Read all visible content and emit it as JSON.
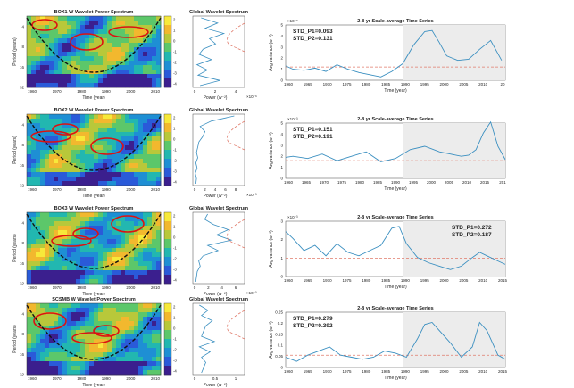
{
  "chart_data": [
    {
      "row": 1,
      "type": "heatmap",
      "title": "BOX1 W Wavelet Power Spectrum",
      "xlabel": "Time (year)",
      "ylabel": "Period (years)",
      "xticks": [
        "1960",
        "1970",
        "1980",
        "1990",
        "2000",
        "2010"
      ],
      "yticks": [
        "4",
        "8",
        "16",
        "32"
      ],
      "colorbar_ticks": [
        "2",
        "1",
        "0",
        "-1",
        "-2",
        "-3",
        "-4"
      ],
      "global": {
        "title": "Global Wavelet Spectrum",
        "xlabel": "Power (w⁻²)",
        "xticks": [
          "0",
          "2",
          "4"
        ],
        "multiplier": "×10⁻⁶",
        "values": [
          0.8,
          2.4,
          1.2,
          3.0,
          1.6,
          2.2,
          1.0,
          0.6,
          1.8,
          0.4,
          1.4,
          0.5,
          2.6,
          0.7
        ],
        "xmax": 5
      },
      "timeseries": {
        "title": "2-8 yr Scale-average Time Series",
        "type": "line",
        "xlabel": "Time (year)",
        "ylabel": "Avg variance (w⁻²)",
        "multiplier": "×10⁻⁶",
        "stats": [
          "STD_P1=0.093",
          "STD_P2=0.131"
        ],
        "stats_position": "top-left",
        "xticks": [
          "1960",
          "1965",
          "1970",
          "1975",
          "1980",
          "1985",
          "1990",
          "1995",
          "2000",
          "2005",
          "2010",
          "20"
        ],
        "yticks": [
          "0",
          "1",
          "2",
          "3",
          "4",
          "5"
        ],
        "ylim": [
          0,
          5
        ],
        "x": [
          1958,
          1960,
          1963,
          1966,
          1969,
          1972,
          1975,
          1978,
          1981,
          1984,
          1987,
          1990,
          1993,
          1996,
          1998,
          2000,
          2002,
          2005,
          2008,
          2011,
          2014,
          2016,
          2017
        ],
        "y": [
          1.3,
          1.0,
          0.9,
          1.1,
          0.8,
          1.4,
          1.0,
          0.7,
          0.5,
          0.3,
          0.8,
          1.5,
          3.2,
          4.4,
          4.5,
          3.4,
          2.2,
          1.8,
          1.9,
          2.8,
          3.6,
          2.4,
          1.8
        ],
        "threshold": 1.2
      }
    },
    {
      "row": 2,
      "type": "heatmap",
      "title": "BOX2 W Wavelet Power Spectrum",
      "xlabel": "Time (year)",
      "ylabel": "Period (years)",
      "xticks": [
        "1960",
        "1970",
        "1980",
        "1990",
        "2000",
        "2010"
      ],
      "yticks": [
        "4",
        "8",
        "16",
        "32"
      ],
      "colorbar_ticks": [
        "2",
        "1",
        "0",
        "-1",
        "-2",
        "-3",
        "-4"
      ],
      "global": {
        "title": "Global Wavelet Spectrum",
        "xlabel": "Power (w⁻²)",
        "xticks": [
          "0",
          "2",
          "4",
          "6",
          "8"
        ],
        "multiplier": "×10⁻³",
        "values": [
          6.8,
          3.0,
          1.2,
          2.0,
          1.6,
          1.0,
          0.8,
          0.6,
          0.8,
          0.5,
          0.7,
          0.4,
          0.6,
          0.5
        ],
        "xmax": 8.5
      },
      "timeseries": {
        "title": "2-8 yr Scale-average Time Series",
        "type": "line",
        "xlabel": "Time (year)",
        "ylabel": "Avg variance (w⁻²)",
        "multiplier": "×10⁻³",
        "stats": [
          "STD_P1=0.151",
          "STD_P2=0.191"
        ],
        "stats_position": "top-left",
        "xticks": [
          "1960",
          "1965",
          "1970",
          "1975",
          "1980",
          "1985",
          "1990",
          "1995",
          "2000",
          "2005",
          "2010",
          "2015",
          "201"
        ],
        "yticks": [
          "0",
          "1",
          "2",
          "3",
          "4",
          "5"
        ],
        "ylim": [
          0,
          5
        ],
        "x": [
          1958,
          1960,
          1964,
          1968,
          1972,
          1976,
          1980,
          1984,
          1988,
          1992,
          1996,
          2000,
          2003,
          2006,
          2008,
          2010,
          2012,
          2014,
          2016,
          2018
        ],
        "y": [
          1.9,
          2.0,
          1.8,
          2.2,
          1.6,
          2.0,
          2.4,
          1.5,
          1.8,
          2.6,
          2.9,
          2.4,
          2.2,
          2.0,
          2.1,
          2.6,
          4.1,
          5.1,
          2.9,
          1.7
        ],
        "threshold": 1.6
      }
    },
    {
      "row": 3,
      "type": "heatmap",
      "title": "BOX3 W Wavelet Power Spectrum",
      "xlabel": "Time (year)",
      "ylabel": "Period (years)",
      "xticks": [
        "1960",
        "1970",
        "1980",
        "1990",
        "2000",
        "2010"
      ],
      "yticks": [
        "4",
        "8",
        "16",
        "32"
      ],
      "colorbar_ticks": [
        "2",
        "1",
        "0",
        "-1",
        "-2",
        "-3",
        "-4"
      ],
      "global": {
        "title": "Global Wavelet Spectrum",
        "xlabel": "Power (w⁻²)",
        "xticks": [
          "0",
          "2",
          "4",
          "6"
        ],
        "multiplier": "×10⁻³",
        "values": [
          2.0,
          1.6,
          2.8,
          4.8,
          3.2,
          5.2,
          2.0,
          3.4,
          1.4,
          0.8,
          1.0,
          0.6,
          0.5,
          0.4
        ],
        "xmax": 7
      },
      "timeseries": {
        "title": "2-8 yr Scale-average Time Series",
        "type": "line",
        "xlabel": "Time (year)",
        "ylabel": "Avg variance (w⁻²)",
        "multiplier": "×10⁻³",
        "stats": [
          "STD_P1=0.272",
          "STD_P2=0.187"
        ],
        "stats_position": "top-right",
        "xticks": [
          "1960",
          "1965",
          "1970",
          "1975",
          "1980",
          "1985",
          "1990",
          "1995",
          "2000",
          "2005",
          "2010",
          "2015"
        ],
        "yticks": [
          "0",
          "1",
          "2",
          "3"
        ],
        "ylim": [
          0,
          3.2
        ],
        "x": [
          1958,
          1960,
          1963,
          1966,
          1969,
          1972,
          1975,
          1978,
          1981,
          1984,
          1987,
          1989,
          1991,
          1994,
          1997,
          2000,
          2003,
          2006,
          2009,
          2011,
          2013,
          2016,
          2018
        ],
        "y": [
          2.6,
          2.2,
          1.5,
          1.8,
          1.2,
          1.9,
          1.4,
          1.2,
          1.5,
          1.8,
          2.8,
          2.9,
          1.9,
          1.1,
          0.8,
          0.6,
          0.4,
          0.6,
          1.1,
          1.4,
          1.2,
          0.9,
          0.7
        ],
        "threshold": 1.05
      }
    },
    {
      "row": 4,
      "type": "heatmap",
      "title": "SCSMB W Wavelet Power Spectrum",
      "xlabel": "Time (year)",
      "ylabel": "Period (years)",
      "xticks": [
        "1960",
        "1970",
        "1980",
        "1990",
        "2000",
        "2010"
      ],
      "yticks": [
        "4",
        "8",
        "16",
        "32"
      ],
      "colorbar_ticks": [
        "2",
        "1",
        "0",
        "-1",
        "-2",
        "-3",
        "-4"
      ],
      "global": {
        "title": "Global Wavelet Spectrum",
        "xlabel": "Power (w⁻²)",
        "xticks": [
          "0",
          "0.5",
          "1"
        ],
        "values": [
          0.15,
          0.35,
          0.2,
          0.45,
          0.3,
          0.25,
          0.2,
          0.5,
          0.15,
          0.4,
          0.2,
          0.3,
          0.25,
          0.2
        ],
        "xmax": 1.2
      },
      "timeseries": {
        "title": "2-8 yr Scale-average Time Series",
        "type": "line",
        "xlabel": "Time (year)",
        "ylabel": "Avg variance (w⁻²)",
        "stats": [
          "STD_P1=0.279",
          "STD_P2=0.392"
        ],
        "stats_position": "top-left",
        "xticks": [
          "1960",
          "1965",
          "1970",
          "1975",
          "1980",
          "1985",
          "1990",
          "1995",
          "2000",
          "2005",
          "2010",
          "2015"
        ],
        "yticks": [
          "0",
          "0.05",
          "0.1",
          "0.15",
          "0.2",
          "0.25"
        ],
        "ylim": [
          0,
          0.27
        ],
        "x": [
          1958,
          1961,
          1964,
          1967,
          1970,
          1973,
          1976,
          1979,
          1982,
          1985,
          1988,
          1991,
          1994,
          1996,
          1998,
          2000,
          2003,
          2006,
          2009,
          2011,
          2013,
          2016,
          2018
        ],
        "y": [
          0.05,
          0.03,
          0.06,
          0.08,
          0.1,
          0.06,
          0.05,
          0.04,
          0.05,
          0.08,
          0.07,
          0.05,
          0.14,
          0.21,
          0.22,
          0.18,
          0.12,
          0.05,
          0.1,
          0.22,
          0.18,
          0.06,
          0.04
        ],
        "threshold": 0.06
      }
    }
  ]
}
